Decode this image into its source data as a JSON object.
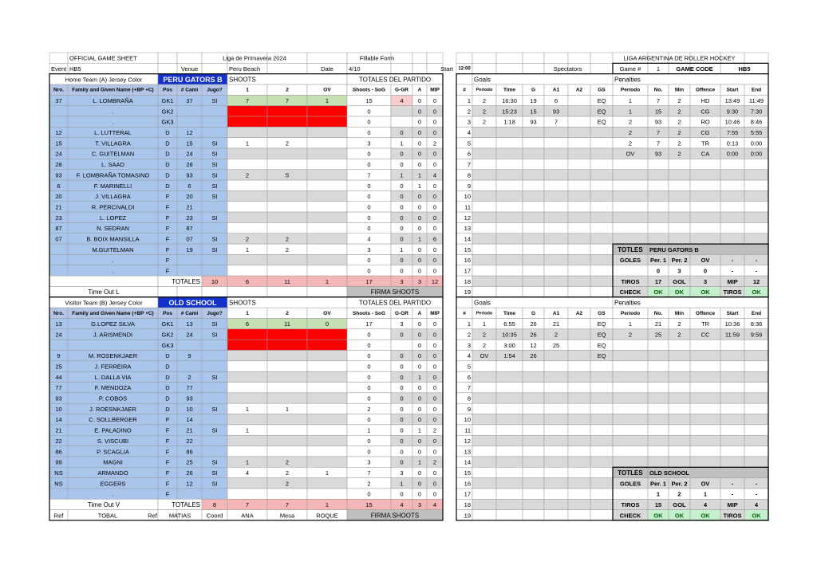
{
  "header": {
    "title": "OFFICIAL GAME SHEET",
    "league": "Liga de Primavera 2024",
    "form": "Fillable Form",
    "federation": "LIGA ARGENTINA DE ROLLER HOCKEY",
    "event_label": "Event",
    "event": "HB5",
    "venue_label": "Venue",
    "venue": "Peru Beach",
    "date_label": "Date",
    "date": "4/10",
    "start_label": "Start",
    "start": "12:00",
    "spectators_label": "Spectators",
    "game_label": "Game #",
    "game": "1",
    "code_label": "GAME CODE",
    "code": "HB5"
  },
  "columns": [
    "Nro.",
    "Family and Given Name (+BP +C)",
    "Pos",
    "# Cami",
    "Jugo?",
    "1",
    "2",
    "OV",
    "Shoots - SoG",
    "G-GR",
    "A",
    "MIP",
    "#",
    "Periodo",
    "Time",
    "G",
    "A1",
    "A2",
    "GS",
    "Periodo",
    "No.",
    "Min",
    "Offence",
    "Start",
    "End"
  ],
  "row_numbers": [
    1,
    2,
    3,
    4,
    5,
    6,
    7,
    8,
    9,
    10,
    11,
    12,
    13,
    14,
    15,
    16,
    17,
    18,
    19
  ],
  "home": {
    "team_label": "Home Team (A) Jersey Color",
    "team_name": "PERU GATORS B",
    "shoots_label": "SHOOTS",
    "totals_label": "TOTALES DEL PARTIDO",
    "goals_label": "Goals",
    "penalties_label": "Penalties",
    "players": [
      [
        "37",
        "L. LOMBRAÑA",
        "GK1",
        "37",
        "SI",
        "7",
        "7",
        "1",
        "15",
        "4",
        "0",
        "0"
      ],
      [
        null,
        ".",
        "GK2",
        null,
        null,
        null,
        null,
        null,
        "0",
        null,
        "0",
        "0"
      ],
      [
        null,
        ".",
        "GK3",
        null,
        null,
        null,
        null,
        null,
        "0",
        null,
        "0",
        "0"
      ],
      [
        "12",
        "L. LUTTERAL",
        "D",
        "12",
        null,
        null,
        null,
        null,
        "0",
        "0",
        "0",
        "0"
      ],
      [
        "15",
        "T. VILLAGRA",
        "D",
        "15",
        "SI",
        "1",
        "2",
        null,
        "3",
        "1",
        "0",
        "2"
      ],
      [
        "24",
        "C. GUITELMAN",
        "D",
        "24",
        "SI",
        null,
        null,
        null,
        "0",
        "0",
        "0",
        "0"
      ],
      [
        "28",
        "L. SAAD",
        "D",
        "28",
        "SI",
        null,
        null,
        null,
        "0",
        "0",
        "0",
        "0"
      ],
      [
        "93",
        "F. LOMBRAÑA TOMASINO",
        "D",
        "93",
        "SI",
        "2",
        "5",
        null,
        "7",
        "1",
        "1",
        "4"
      ],
      [
        "6",
        "F. MARINELLI",
        "D",
        "6",
        "SI",
        null,
        null,
        null,
        "0",
        "0",
        "1",
        "0"
      ],
      [
        "20",
        "J. VILLAGRA",
        "F",
        "20",
        "SI",
        null,
        null,
        null,
        "0",
        "0",
        "0",
        "0"
      ],
      [
        "21",
        "R. PERCIVALDI",
        "F",
        "21",
        null,
        null,
        null,
        null,
        "0",
        "0",
        "0",
        "0"
      ],
      [
        "23",
        "L. LOPEZ",
        "F",
        "23",
        "SI",
        null,
        null,
        null,
        "0",
        "0",
        "0",
        "0"
      ],
      [
        "87",
        "N. SEDRAN",
        "F",
        "87",
        null,
        null,
        null,
        null,
        "0",
        "0",
        "0",
        "0"
      ],
      [
        "07",
        "B. BOIX MANSILLA",
        "F",
        "07",
        "SI",
        "2",
        "2",
        null,
        "4",
        "0",
        "1",
        "6"
      ],
      [
        null,
        "M.GUITELMAN",
        "F",
        "19",
        "SI",
        "1",
        "2",
        null,
        "3",
        "1",
        "0",
        "0"
      ],
      [
        null,
        ".",
        "F",
        null,
        null,
        null,
        null,
        null,
        "0",
        "0",
        "0",
        "0"
      ],
      [
        null,
        ".",
        "F",
        null,
        null,
        null,
        null,
        null,
        "0",
        "0",
        "0",
        "0"
      ]
    ],
    "totals_row_label": "TOTALES",
    "totals": [
      "10",
      "6",
      "11",
      "1",
      "17",
      "3",
      "3",
      "12"
    ],
    "timeout_label": "Time Out L",
    "signature_label": "FIRMA SHOOTS",
    "goals": [
      [
        "2",
        "16:30",
        "19",
        "6",
        null,
        "EQ"
      ],
      [
        "2",
        "15:23",
        "15",
        "93",
        null,
        "EQ"
      ],
      [
        "2",
        "1:18",
        "93",
        "7",
        null,
        "EQ"
      ]
    ],
    "penalties": [
      [
        "1",
        "7",
        "2",
        "HD",
        "13:49",
        "11:49"
      ],
      [
        "1",
        "15",
        "2",
        "CG",
        "9:30",
        "7:30"
      ],
      [
        "2",
        "93",
        "2",
        "RO",
        "10:46",
        "8:46"
      ],
      [
        "2",
        "7",
        "2",
        "CG",
        "7:55",
        "5:55"
      ],
      [
        "2",
        "7",
        "2",
        "TR",
        "0:13",
        "0:00"
      ],
      [
        "OV",
        "93",
        "2",
        "CA",
        "0:00",
        "0:00"
      ]
    ],
    "summary": {
      "label": "TOTLES",
      "team": "PERU GATORS B",
      "rows": [
        [
          "GOLES",
          "Per. 1",
          "Per. 2",
          "OV",
          "-",
          "-"
        ],
        [
          null,
          "0",
          "3",
          "0",
          "-",
          "-"
        ],
        [
          "TIROS",
          "17",
          "GOL",
          "3",
          "MIP",
          "12"
        ],
        [
          "CHECK",
          "OK",
          "OK",
          "OK",
          "TIROS",
          "OK"
        ]
      ]
    }
  },
  "visitor": {
    "team_label": "Visitor Team (B) Jersey Color",
    "team_name": "OLD SCHOOL",
    "shoots_label": "SHOOTS",
    "totals_label": "TOTALES DEL PARTIDO",
    "goals_label": "Goals",
    "penalties_label": "Penalties",
    "players": [
      [
        "13",
        "G.LOPEZ SILVA",
        "GK1",
        "13",
        "SI",
        "6",
        "11",
        "0",
        "17",
        "3",
        "0",
        "0"
      ],
      [
        "24",
        "J. ARISMENDI",
        "GK2",
        "24",
        "SI",
        null,
        null,
        null,
        "0",
        "0",
        "0",
        "0"
      ],
      [
        null,
        null,
        "GK3",
        null,
        null,
        null,
        null,
        null,
        "0",
        null,
        "0",
        "0"
      ],
      [
        "9",
        "M. ROSENKJAER",
        "D",
        "9",
        null,
        null,
        null,
        null,
        "0",
        "0",
        "0",
        "0"
      ],
      [
        "25",
        "J. FERREIRA",
        "D",
        null,
        null,
        null,
        null,
        null,
        "0",
        "0",
        "0",
        "0"
      ],
      [
        "44",
        "L. DALLA VIA",
        "D",
        "2",
        "SI",
        null,
        null,
        null,
        "0",
        "0",
        "1",
        "0"
      ],
      [
        "77",
        "F. MENDOZA",
        "D",
        "77",
        null,
        null,
        null,
        null,
        "0",
        "0",
        "0",
        "0"
      ],
      [
        "93",
        "P. COBOS",
        "D",
        "93",
        null,
        null,
        null,
        null,
        "0",
        "0",
        "0",
        "0"
      ],
      [
        "10",
        "J. ROESNKJAER",
        "D",
        "10",
        "SI",
        "1",
        "1",
        null,
        "2",
        "0",
        "0",
        "0"
      ],
      [
        "14",
        "C. SOLLBERGER",
        "F",
        "14",
        null,
        null,
        null,
        null,
        "0",
        "0",
        "0",
        "0"
      ],
      [
        "21",
        "E. PALADINO",
        "F",
        "21",
        "SI",
        "1",
        null,
        null,
        "1",
        "0",
        "1",
        "2"
      ],
      [
        "22",
        "S. VISCUBI",
        "F",
        "22",
        null,
        null,
        null,
        null,
        "0",
        "0",
        "0",
        "0"
      ],
      [
        "86",
        "P. SCAGLIA",
        "F",
        "86",
        null,
        null,
        null,
        null,
        "0",
        "0",
        "0",
        "0"
      ],
      [
        "99",
        "MAGNI",
        "F",
        "25",
        "SI",
        "1",
        "2",
        null,
        "3",
        "0",
        "1",
        "2"
      ],
      [
        "NS",
        "ARMANDO",
        "F",
        "26",
        "SI",
        "4",
        "2",
        "1",
        "7",
        "3",
        "0",
        "0"
      ],
      [
        "NS",
        "EGGERS",
        "F",
        "12",
        "SI",
        null,
        "2",
        null,
        "2",
        "1",
        "0",
        "0"
      ],
      [
        null,
        ".",
        "F",
        null,
        null,
        null,
        null,
        null,
        "0",
        "0",
        "0",
        "0"
      ]
    ],
    "totals_row_label": "TOTALES",
    "totals": [
      "8",
      "7",
      "7",
      "1",
      "15",
      "4",
      "3",
      "4"
    ],
    "timeout_label": "Time Out V",
    "signature_label": "FIRMA SHOOTS",
    "officials": [
      "Ref",
      "TOBAL",
      "Ref",
      "MATIAS",
      "Coord",
      "ANA",
      "Mesa",
      "ROQUE"
    ],
    "goals": [
      [
        "1",
        "6:55",
        "26",
        "21",
        null,
        "EQ"
      ],
      [
        "2",
        "10:35",
        "26",
        "2",
        null,
        "EQ"
      ],
      [
        "2",
        "3:00",
        "12",
        "25",
        null,
        "EQ"
      ],
      [
        "OV",
        "1:54",
        "26",
        null,
        null,
        "EQ"
      ]
    ],
    "penalties": [
      [
        "1",
        "21",
        "2",
        "TR",
        "10:36",
        "8:36"
      ],
      [
        "2",
        "25",
        "2",
        "CC",
        "11:59",
        "9:59"
      ]
    ],
    "summary": {
      "label": "TOTLES",
      "team": "OLD SCHOOL",
      "rows": [
        [
          "GOLES",
          "Per. 1",
          "Per. 2",
          "OV",
          "-",
          "-"
        ],
        [
          null,
          "1",
          "2",
          "1",
          "-",
          "-"
        ],
        [
          "TIROS",
          "15",
          "GOL",
          "4",
          "MIP",
          "4"
        ],
        [
          "CHECK",
          "OK",
          "OK",
          "OK",
          "TIROS",
          "OK"
        ]
      ]
    }
  }
}
